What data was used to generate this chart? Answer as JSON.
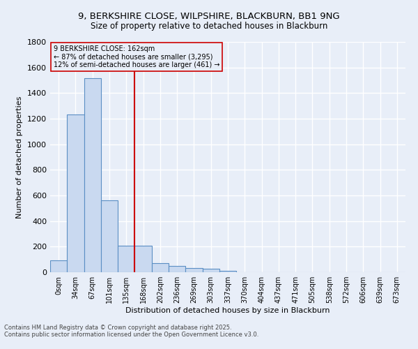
{
  "title_line1": "9, BERKSHIRE CLOSE, WILPSHIRE, BLACKBURN, BB1 9NG",
  "title_line2": "Size of property relative to detached houses in Blackburn",
  "xlabel": "Distribution of detached houses by size in Blackburn",
  "ylabel": "Number of detached properties",
  "bar_color": "#c9d9f0",
  "bar_edge_color": "#5b8fc4",
  "background_color": "#e8eef8",
  "grid_color": "#ffffff",
  "categories": [
    "0sqm",
    "34sqm",
    "67sqm",
    "101sqm",
    "135sqm",
    "168sqm",
    "202sqm",
    "236sqm",
    "269sqm",
    "303sqm",
    "337sqm",
    "370sqm",
    "404sqm",
    "437sqm",
    "471sqm",
    "505sqm",
    "538sqm",
    "572sqm",
    "606sqm",
    "639sqm",
    "673sqm"
  ],
  "values": [
    93,
    1235,
    1515,
    560,
    210,
    210,
    70,
    48,
    35,
    27,
    10,
    0,
    0,
    0,
    0,
    0,
    0,
    0,
    0,
    0,
    0
  ],
  "vline_color": "#cc0000",
  "annotation_text": "9 BERKSHIRE CLOSE: 162sqm\n← 87% of detached houses are smaller (3,295)\n12% of semi-detached houses are larger (461) →",
  "annotation_box_color": "#cc0000",
  "ylim": [
    0,
    1800
  ],
  "yticks": [
    0,
    200,
    400,
    600,
    800,
    1000,
    1200,
    1400,
    1600,
    1800
  ],
  "footnote1": "Contains HM Land Registry data © Crown copyright and database right 2025.",
  "footnote2": "Contains public sector information licensed under the Open Government Licence v3.0."
}
